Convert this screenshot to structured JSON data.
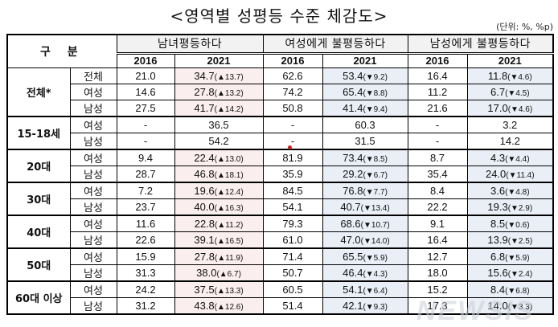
{
  "title": "<영역별 성평등 수준 체감도>",
  "unit": "(단위: %, %p)",
  "header": {
    "category": "구 분",
    "groups": [
      "남녀평등하다",
      "여성에게 불평등하다",
      "남성에게 불평등하다"
    ],
    "years": [
      "2016",
      "2021",
      "2016",
      "2021",
      "2016",
      "2021"
    ]
  },
  "rows": [
    {
      "group": "전체*",
      "sub": "전체",
      "v": [
        "21.0",
        "34.7",
        "(▲13.7)",
        "62.6",
        "53.4",
        "(▼9.2)",
        "16.4",
        "11.8",
        "(▼4.6)"
      ]
    },
    {
      "group": "",
      "sub": "여성",
      "v": [
        "14.6",
        "27.8",
        "(▲13.2)",
        "74.2",
        "65.4",
        "(▼8.8)",
        "11.2",
        "6.7",
        "(▼4.5)"
      ]
    },
    {
      "group": "",
      "sub": "남성",
      "v": [
        "27.5",
        "41.7",
        "(▲14.2)",
        "50.8",
        "41.4",
        "(▼9.4)",
        "21.6",
        "17.0",
        "(▼4.6)"
      ]
    },
    {
      "group": "15-18세",
      "sub": "여성",
      "v": [
        "-",
        "36.5",
        "",
        "-",
        "60.3",
        "",
        "-",
        "3.2",
        ""
      ]
    },
    {
      "group": "",
      "sub": "남성",
      "v": [
        "-",
        "54.2",
        "",
        "-",
        "31.5",
        "",
        "-",
        "14.2",
        ""
      ]
    },
    {
      "group": "20대",
      "sub": "여성",
      "v": [
        "9.4",
        "22.4",
        "(▲13.0)",
        "81.9",
        "73.4",
        "(▼8.5)",
        "8.7",
        "4.3",
        "(▼4.4)"
      ]
    },
    {
      "group": "",
      "sub": "남성",
      "v": [
        "28.7",
        "46.8",
        "(▲18.1)",
        "35.9",
        "29.2",
        "(▼6.7)",
        "35.4",
        "24.0",
        "(▼11.4)"
      ]
    },
    {
      "group": "30대",
      "sub": "여성",
      "v": [
        "7.2",
        "19.6",
        "(▲12.4)",
        "84.5",
        "76.8",
        "(▼7.7)",
        "8.4",
        "3.6",
        "(▼4.8)"
      ]
    },
    {
      "group": "",
      "sub": "남성",
      "v": [
        "23.7",
        "40.0",
        "(▲16.3)",
        "54.1",
        "40.7",
        "(▼13.4)",
        "22.2",
        "19.3",
        "(▼2.9)"
      ]
    },
    {
      "group": "40대",
      "sub": "여성",
      "v": [
        "11.6",
        "22.8",
        "(▲11.2)",
        "79.3",
        "68.6",
        "(▼10.7)",
        "9.1",
        "8.5",
        "(▼0.6)"
      ]
    },
    {
      "group": "",
      "sub": "남성",
      "v": [
        "22.6",
        "39.1",
        "(▲16.5)",
        "61.0",
        "47.0",
        "(▼14.0)",
        "16.4",
        "13.9",
        "(▼2.5)"
      ]
    },
    {
      "group": "50대",
      "sub": "여성",
      "v": [
        "15.9",
        "27.8",
        "(▲11.9)",
        "71.4",
        "65.5",
        "(▼5.9)",
        "12.7",
        "6.8",
        "(▼5.9)"
      ]
    },
    {
      "group": "",
      "sub": "남성",
      "v": [
        "31.3",
        "38.0",
        "(▲6.7)",
        "50.7",
        "46.4",
        "(▼4.3)",
        "18.0",
        "15.6",
        "(▼2.4)"
      ]
    },
    {
      "group": "60대 이상",
      "sub": "여성",
      "v": [
        "24.2",
        "37.5",
        "(▲13.3)",
        "60.5",
        "54.1",
        "(▼6.4)",
        "15.2",
        "8.4",
        "(▼6.8)"
      ]
    },
    {
      "group": "",
      "sub": "남성",
      "v": [
        "31.2",
        "43.8",
        "(▲12.6)",
        "51.4",
        "42.1",
        "(▼9.3)",
        "17.3",
        "14.0",
        "(▼3.3)"
      ]
    }
  ],
  "watermark": "NEWSIS",
  "colors": {
    "pink_cell": "#fbeeee",
    "blue_cell": "#eaeff7",
    "header_bg": "#f2f2f2"
  }
}
